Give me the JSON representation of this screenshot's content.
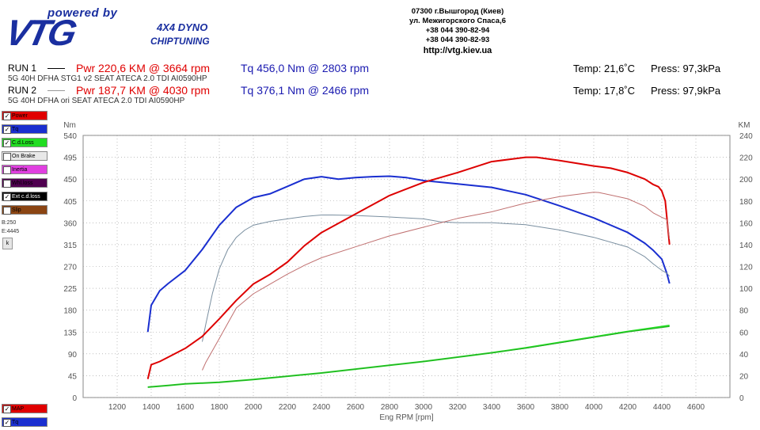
{
  "header": {
    "logo_powered": "powered by",
    "logo_brand": "VTG",
    "logo_dyno": "4X4 DYNO",
    "logo_chip": "CHIPTUNING",
    "address": [
      "07300 г.Вышгород (Киев)",
      "ул. Межигорского Спаса,6",
      "+38 044 390-82-94",
      "+38 044 390-82-93"
    ],
    "url": "http://vtg.kiev.ua"
  },
  "runs": [
    {
      "label": "RUN 1",
      "desc": "5G 40H  DFHA STG1 v2 SEAT ATECA 2.0 TDI AI0590HP",
      "pwr": "Pwr  220,6 KM @ 3664 rpm",
      "tq": "Tq 456,0 Nm @ 2803 rpm",
      "temp": "Temp: 21,6˚C",
      "press": "Press: 97,3kPa",
      "line_color": "#000000"
    },
    {
      "label": "RUN 2",
      "desc": "5G 40H  DFHA ori SEAT ATECA 2.0 TDI AI0590HP",
      "pwr": "Pwr  187,7 KM @ 4030 rpm",
      "tq": "Tq 376,1 Nm @ 2466 rpm",
      "temp": "Temp: 17,8˚C",
      "press": "Press: 97,9kPa",
      "line_color": "#999999"
    }
  ],
  "legend": [
    {
      "label": "Power",
      "color": "#e00000",
      "checked": true
    },
    {
      "label": "Tq",
      "color": "#1a2fd0",
      "checked": true
    },
    {
      "label": "C.d.Loss",
      "color": "#22dd22",
      "checked": true
    },
    {
      "label": "On Brake",
      "color": "#e8e8e8",
      "checked": false
    },
    {
      "label": "Inertia",
      "color": "#e040e0",
      "checked": false
    },
    {
      "label": "Whl.loss",
      "color": "#500050",
      "checked": false
    },
    {
      "label": "Ext c.d.loss",
      "color": "#000000",
      "checked": true
    },
    {
      "label": "Slip",
      "color": "#8b4513",
      "checked": false
    }
  ],
  "side_info": {
    "b": "B:250",
    "e": "E:4445",
    "btn": "k"
  },
  "legend_bottom": [
    {
      "label": "MAP",
      "color": "#e00000",
      "checked": true
    },
    {
      "label": "Tq",
      "color": "#1a2fd0",
      "checked": true
    }
  ],
  "chart_data": {
    "type": "line",
    "xlabel": "Eng RPM [rpm]",
    "ylabel_left": "Nm",
    "ylabel_right": "KM",
    "xlim": [
      1000,
      4800
    ],
    "ylim_left": [
      0,
      540
    ],
    "ylim_right": [
      0,
      240
    ],
    "x_ticks": [
      1200,
      1400,
      1600,
      1800,
      2000,
      2200,
      2400,
      2600,
      2800,
      3000,
      3200,
      3400,
      3600,
      3800,
      4000,
      4200,
      4400,
      4600
    ],
    "y_ticks_left": [
      0,
      45,
      90,
      135,
      180,
      225,
      270,
      315,
      360,
      405,
      450,
      495,
      540
    ],
    "y_ticks_right": [
      0,
      20,
      40,
      60,
      80,
      100,
      120,
      140,
      160,
      180,
      200,
      220,
      240
    ],
    "grid": true,
    "series": [
      {
        "name": "Tq RUN 1",
        "axis": "left",
        "color": "#1a2fd0",
        "width": 2,
        "x": [
          1380,
          1400,
          1450,
          1500,
          1600,
          1700,
          1800,
          1900,
          2000,
          2100,
          2200,
          2300,
          2400,
          2500,
          2600,
          2700,
          2800,
          2900,
          3000,
          3200,
          3400,
          3600,
          3800,
          4000,
          4200,
          4300,
          4350,
          4400,
          4430,
          4445
        ],
        "y": [
          135,
          190,
          220,
          235,
          262,
          305,
          355,
          392,
          412,
          420,
          435,
          450,
          455,
          450,
          453,
          455,
          456,
          453,
          447,
          440,
          433,
          418,
          395,
          370,
          340,
          318,
          303,
          285,
          255,
          235
        ]
      },
      {
        "name": "Tq RUN 2",
        "axis": "left",
        "color": "#7a8fa0",
        "width": 1,
        "x": [
          1700,
          1720,
          1760,
          1800,
          1850,
          1900,
          1950,
          2000,
          2100,
          2200,
          2300,
          2400,
          2466,
          2600,
          2800,
          3000,
          3100,
          3200,
          3400,
          3600,
          3800,
          4000,
          4200,
          4300,
          4350,
          4400,
          4430,
          4445
        ],
        "y": [
          115,
          150,
          215,
          265,
          305,
          330,
          345,
          355,
          363,
          368,
          373,
          376,
          376,
          375,
          372,
          368,
          362,
          360,
          360,
          356,
          345,
          330,
          310,
          290,
          275,
          262,
          256,
          250
        ]
      },
      {
        "name": "Pwr RUN 1",
        "axis": "right",
        "color": "#dd0000",
        "width": 2,
        "x": [
          1380,
          1400,
          1450,
          1500,
          1600,
          1700,
          1800,
          1900,
          2000,
          2100,
          2200,
          2300,
          2400,
          2600,
          2800,
          3000,
          3200,
          3400,
          3600,
          3664,
          3800,
          4000,
          4100,
          4200,
          4300,
          4350,
          4380,
          4400,
          4420,
          4445
        ],
        "y": [
          17,
          30,
          33,
          37,
          45,
          56,
          72,
          89,
          104,
          113,
          124,
          139,
          151,
          168,
          185,
          197,
          206,
          216,
          220,
          220,
          217,
          212,
          210,
          206,
          200,
          195,
          193,
          189,
          180,
          140
        ]
      },
      {
        "name": "Pwr RUN 2",
        "axis": "right",
        "color": "#c07070",
        "width": 1,
        "x": [
          1700,
          1720,
          1800,
          1900,
          2000,
          2100,
          2200,
          2300,
          2400,
          2600,
          2800,
          3000,
          3200,
          3400,
          3600,
          3800,
          4000,
          4030,
          4200,
          4300,
          4350,
          4400,
          4430,
          4445
        ],
        "y": [
          25,
          32,
          54,
          82,
          95,
          104,
          113,
          121,
          128,
          138,
          148,
          156,
          164,
          170,
          178,
          184,
          188,
          187.7,
          182,
          175,
          169,
          165,
          163,
          145
        ]
      },
      {
        "name": "C.d.Loss RUN 1",
        "axis": "right",
        "color": "#22dd22",
        "width": 2,
        "x": [
          1380,
          1500,
          1600,
          1800,
          2000,
          2200,
          2400,
          2600,
          2800,
          3000,
          3200,
          3400,
          3600,
          3800,
          4000,
          4200,
          4445
        ],
        "y": [
          9.5,
          11,
          12.5,
          14,
          16.5,
          19.5,
          22.5,
          26,
          29.5,
          33,
          37,
          41,
          45.5,
          50.5,
          55.5,
          60.5,
          66
        ]
      },
      {
        "name": "C.d.Loss RUN 2",
        "axis": "right",
        "color": "#22aa22",
        "width": 1,
        "x": [
          1380,
          1600,
          1800,
          2000,
          2200,
          2400,
          2600,
          2800,
          3000,
          3200,
          3400,
          3600,
          3800,
          4000,
          4200,
          4445
        ],
        "y": [
          9.5,
          12.5,
          14,
          16.5,
          19.5,
          22.5,
          26,
          29.5,
          33,
          37,
          41,
          45,
          50,
          55,
          60,
          65
        ]
      }
    ]
  }
}
